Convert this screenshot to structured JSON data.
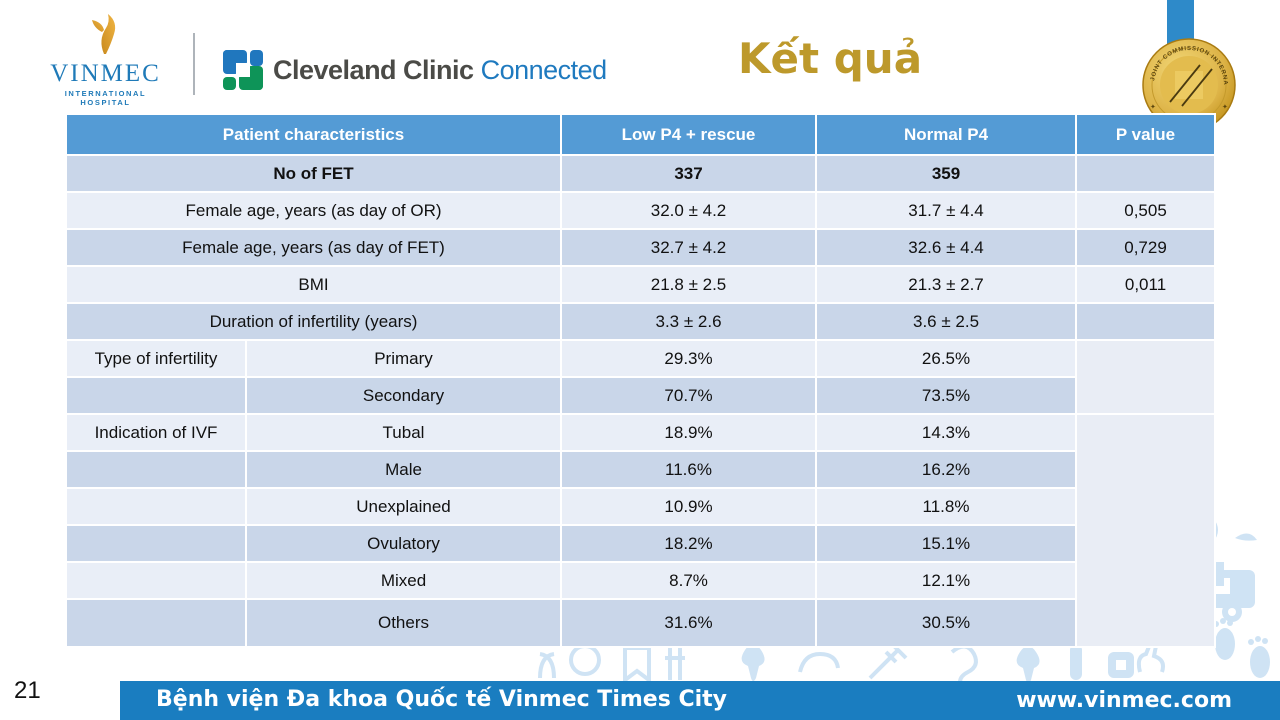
{
  "slide": {
    "page_number": "21",
    "title": "Kết quả",
    "title_color": "#BD992B"
  },
  "logos": {
    "vinmec": {
      "name": "VINMEC",
      "subtitle": "INTERNATIONAL HOSPITAL",
      "text_color": "#1F7AB8",
      "bird_gold": "#DFA32E"
    },
    "cleveland": {
      "name": "Cleveland Clinic",
      "suffix": "Connected",
      "name_color": "#4B4B47",
      "suffix_color": "#1F7ABF",
      "icon_blue": "#2077BE",
      "icon_green": "#0E9458"
    }
  },
  "medal": {
    "ring_text": "JOINT COMMISSION INTERNATIONAL",
    "ribbon_color": "#2E8AC9",
    "gold_color": "#D9AE3C"
  },
  "table": {
    "header_bg": "#549BD5",
    "row_dark_bg": "#C9D6E9",
    "row_light_bg": "#E9EEF7",
    "headers": [
      "Patient characteristics",
      "Low P4 + rescue",
      "Normal P4",
      "P value"
    ],
    "rows": [
      {
        "label": "No of FET",
        "sub": null,
        "low": "337",
        "normal": "359",
        "p": "",
        "bold": true
      },
      {
        "label": "Female age, years (as day of OR)",
        "sub": null,
        "low": "32.0 ± 4.2",
        "normal": "31.7 ± 4.4",
        "p": "0,505"
      },
      {
        "label": "Female age, years (as day of FET)",
        "sub": null,
        "low": "32.7 ± 4.2",
        "normal": "32.6 ± 4.4",
        "p": "0,729"
      },
      {
        "label": "BMI",
        "sub": null,
        "low": "21.8 ± 2.5",
        "normal": "21.3 ± 2.7",
        "p": "0,011"
      },
      {
        "label": "Duration of infertility (years)",
        "sub": null,
        "low": "3.3 ± 2.6",
        "normal": "3.6 ± 2.5",
        "p": ""
      },
      {
        "label": "Type of infertility",
        "sub": "Primary",
        "low": "29.3%",
        "normal": "26.5%",
        "p": "",
        "p_rowspan": 2
      },
      {
        "label": "",
        "sub": "Secondary",
        "low": "70.7%",
        "normal": "73.5%"
      },
      {
        "label": "Indication of IVF",
        "sub": "Tubal",
        "low": "18.9%",
        "normal": "14.3%",
        "p": "",
        "p_rowspan": 6
      },
      {
        "label": "",
        "sub": "Male",
        "low": "11.6%",
        "normal": "16.2%"
      },
      {
        "label": "",
        "sub": "Unexplained",
        "low": "10.9%",
        "normal": "11.8%"
      },
      {
        "label": "",
        "sub": "Ovulatory",
        "low": "18.2%",
        "normal": "15.1%"
      },
      {
        "label": "",
        "sub": "Mixed",
        "low": "8.7%",
        "normal": "12.1%"
      },
      {
        "label": "",
        "sub": "Others",
        "low": "31.6%",
        "normal": "30.5%"
      }
    ]
  },
  "footer": {
    "bg": "#1A7DC0",
    "hospital": "Bệnh viện Đa khoa Quốc tế Vinmec Times City",
    "website": "www.vinmec.com"
  }
}
